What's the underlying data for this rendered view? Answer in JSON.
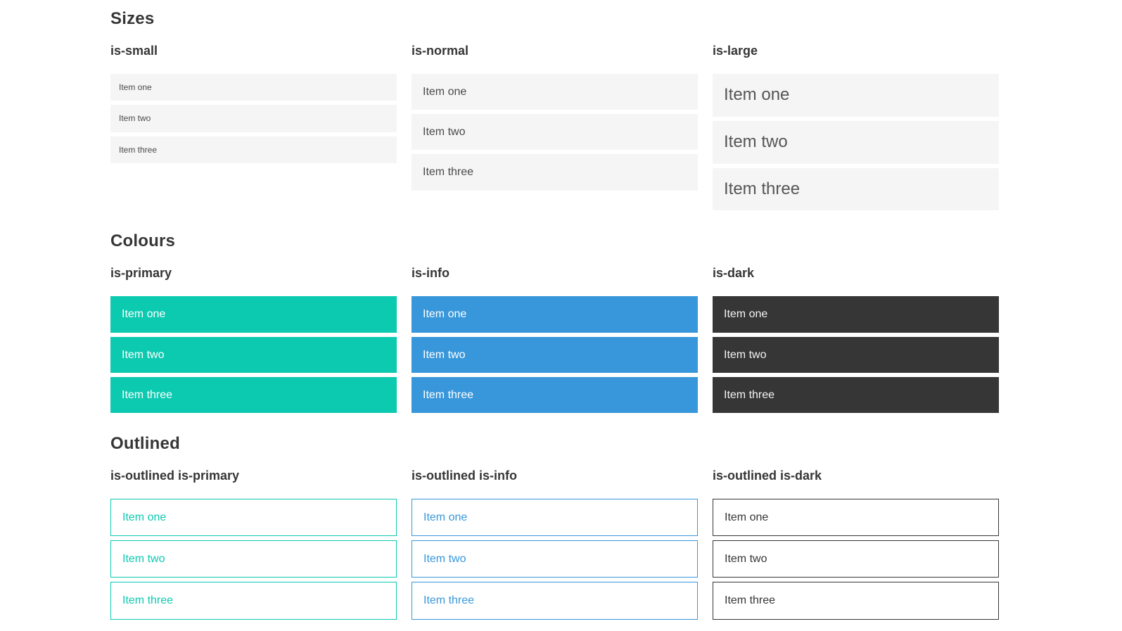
{
  "theme": {
    "primary": "#0ccab0",
    "info": "#3897db",
    "dark": "#363636",
    "surface": "#f5f5f5",
    "text": "#4a4a4a",
    "heading": "#363636"
  },
  "sections": [
    {
      "title": "Sizes",
      "columns": [
        {
          "label": "is-small",
          "variant": "small",
          "items": [
            "Item one",
            "Item two",
            "Item three"
          ]
        },
        {
          "label": "is-normal",
          "variant": "normal",
          "items": [
            "Item one",
            "Item two",
            "Item three"
          ]
        },
        {
          "label": "is-large",
          "variant": "large",
          "items": [
            "Item one",
            "Item two",
            "Item three"
          ]
        }
      ]
    },
    {
      "title": "Colours",
      "columns": [
        {
          "label": "is-primary",
          "variant": "primary",
          "items": [
            "Item one",
            "Item two",
            "Item three"
          ]
        },
        {
          "label": "is-info",
          "variant": "info",
          "items": [
            "Item one",
            "Item two",
            "Item three"
          ]
        },
        {
          "label": "is-dark",
          "variant": "dark",
          "items": [
            "Item one",
            "Item two",
            "Item three"
          ]
        }
      ]
    },
    {
      "title": "Outlined",
      "columns": [
        {
          "label": "is-outlined is-primary",
          "variant": "outlined-primary",
          "items": [
            "Item one",
            "Item two",
            "Item three"
          ]
        },
        {
          "label": "is-outlined is-info",
          "variant": "outlined-info",
          "items": [
            "Item one",
            "Item two",
            "Item three"
          ]
        },
        {
          "label": "is-outlined is-dark",
          "variant": "outlined-dark",
          "items": [
            "Item one",
            "Item two",
            "Item three"
          ]
        }
      ]
    }
  ]
}
